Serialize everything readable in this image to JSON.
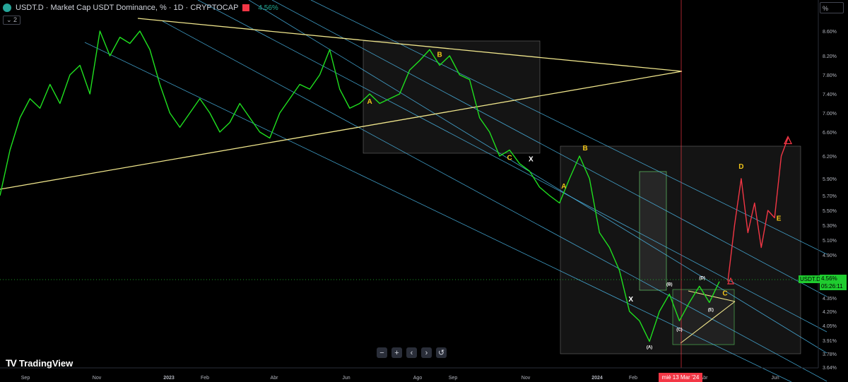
{
  "header": {
    "title": "USDT.D · Market Cap USDT Dominance, % · 1D · CRYPTOCAP",
    "change": "4.56%",
    "indicator_badge": "⌄ 2",
    "icon": "tether-logo-icon",
    "flag_icon": "flag-icon"
  },
  "brand": {
    "name": "TradingView",
    "mark": "TV"
  },
  "controls": [
    "−",
    "+",
    "‹",
    "›",
    "↺"
  ],
  "price_axis": {
    "unit_button": "%"
  },
  "current_price": {
    "symbol": "USDT.D",
    "value": "4.56%",
    "countdown": "05:26:11"
  },
  "crosshair_date": "mié 13 Mar '24",
  "chart_data": {
    "type": "line",
    "title": "USDT.D · Market Cap USDT Dominance, % · 1D · CRYPTOCAP",
    "y_ticks": [
      "8.60%",
      "8.20%",
      "7.80%",
      "7.40%",
      "7.00%",
      "6.60%",
      "6.20%",
      "5.90%",
      "5.70%",
      "5.50%",
      "5.30%",
      "5.10%",
      "4.90%",
      "4.35%",
      "4.20%",
      "4.05%",
      "3.91%",
      "3.78%",
      "3.64%"
    ],
    "x_ticks": [
      "Sep",
      "Nov",
      "2023",
      "Feb",
      "Abr",
      "Jun",
      "Ago",
      "Sep",
      "Nov",
      "2024",
      "Feb",
      "Abr",
      "Jun"
    ],
    "series": [
      {
        "color": "#1fe01f",
        "values": [
          5.7,
          6.3,
          6.9,
          7.3,
          7.1,
          7.6,
          7.2,
          7.8,
          8.0,
          7.4,
          8.6,
          8.2,
          8.5,
          8.4,
          8.7,
          8.3,
          7.6,
          7.0,
          6.7,
          7.0,
          7.3,
          7.0,
          6.6,
          6.8,
          7.2,
          6.9,
          6.6,
          6.5,
          7.0,
          7.3,
          7.6,
          7.5,
          7.8,
          8.3,
          7.5,
          7.1,
          7.2,
          7.4,
          7.2,
          7.3,
          7.4,
          7.9,
          8.1,
          8.3,
          8.0,
          8.2,
          7.8,
          7.7,
          6.9,
          6.6,
          6.2,
          6.3,
          6.1,
          6.0,
          5.8,
          5.7,
          5.6,
          5.9,
          6.2,
          5.9,
          5.2,
          5.0,
          4.7,
          4.2,
          4.1,
          3.9,
          4.2,
          4.4,
          4.1,
          4.3,
          4.5,
          4.3,
          4.56
        ],
        "last": "4.56%"
      },
      {
        "color": "#f23645",
        "values": [
          4.56,
          5.3,
          5.9,
          5.2,
          5.6,
          5.0,
          5.5,
          5.4,
          6.2,
          6.5
        ]
      }
    ],
    "ylim": [
      3.64,
      8.6
    ],
    "wave_labels": [
      {
        "text": "B",
        "color": "#f0c419",
        "series_index": 0,
        "value_index": 44
      },
      {
        "text": "A",
        "color": "#f0c419",
        "series_index": 0,
        "value_index": 37
      },
      {
        "text": "X",
        "color": "#ffffff",
        "series_index": 0,
        "value_index": 53
      },
      {
        "text": "C",
        "color": "#f0c419",
        "series_index": 0,
        "value_index": 51
      },
      {
        "text": "B",
        "color": "#f0c419",
        "series_index": 0,
        "value_index": 58
      },
      {
        "text": "A",
        "color": "#f0c419",
        "series_index": 0,
        "value_index": 57
      },
      {
        "text": "X",
        "color": "#ffffff",
        "series_index": 0,
        "value_index": 63
      },
      {
        "text": "(B)",
        "color": "#ffffff",
        "series_index": 0,
        "value_index": 67
      },
      {
        "text": "(D)",
        "color": "#ffffff",
        "series_index": 0,
        "value_index": 70
      },
      {
        "text": "(A)",
        "color": "#ffffff",
        "series_index": 0,
        "value_index": 65
      },
      {
        "text": "(C)",
        "color": "#ffffff",
        "series_index": 0,
        "value_index": 68
      },
      {
        "text": "(E)",
        "color": "#ffffff",
        "series_index": 0,
        "value_index": 71
      },
      {
        "text": "C",
        "color": "#f0c419",
        "series_index": 0,
        "value_index": 72
      },
      {
        "text": "D",
        "color": "#f0c419",
        "series_index": 1,
        "value_index": 2
      },
      {
        "text": "E",
        "color": "#f0c419",
        "series_index": 1,
        "value_index": 7
      }
    ],
    "grid": false,
    "legend": "none"
  }
}
